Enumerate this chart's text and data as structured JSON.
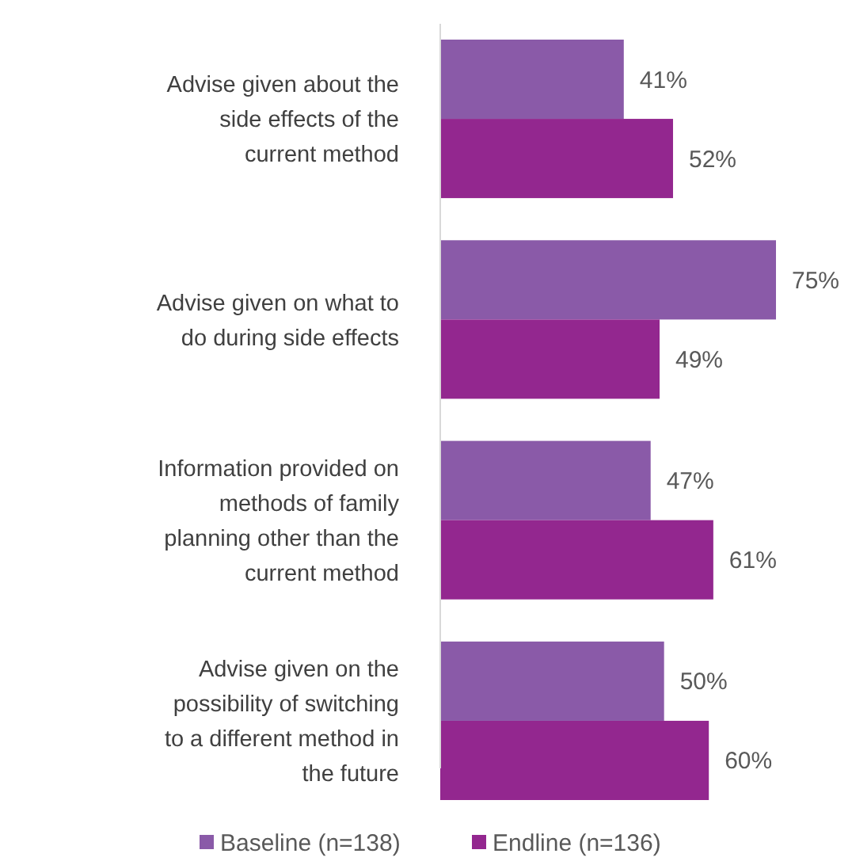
{
  "chart_data": {
    "type": "bar",
    "orientation": "horizontal",
    "categories": [
      "Advise given about the side effects of the current method",
      "Advise given on what to do during side effects",
      "Information provided on methods of family planning other than the current method",
      "Advise given on the possibility of switching to a different method in the future"
    ],
    "series": [
      {
        "name": "Baseline (n=138)",
        "color": "#8a5aa8",
        "values": [
          41,
          75,
          47,
          50
        ],
        "value_labels": [
          "41%",
          "75%",
          "47%",
          "50%"
        ]
      },
      {
        "name": "Endline (n=136)",
        "color": "#93278f",
        "values": [
          52,
          49,
          61,
          60
        ],
        "value_labels": [
          "52%",
          "49%",
          "61%",
          "60%"
        ]
      }
    ],
    "legend": "bottom"
  }
}
